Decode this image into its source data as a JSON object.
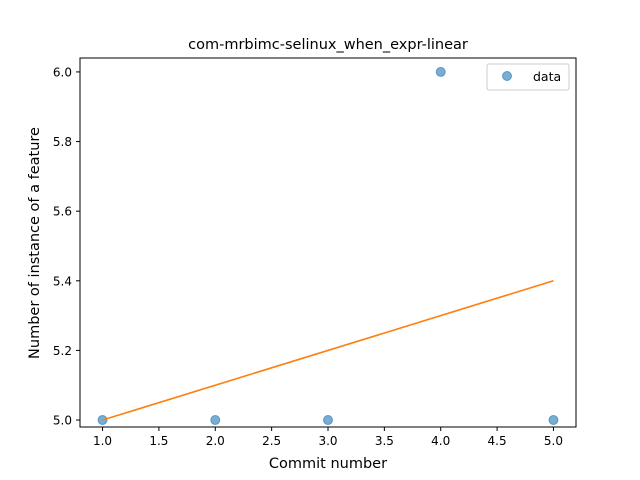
{
  "chart_data": {
    "type": "scatter",
    "title": "com-mrbimc-selinux_when_expr-linear",
    "xlabel": "Commit number",
    "ylabel": "Number of instance of a feature",
    "xlim": [
      0.8,
      5.2
    ],
    "ylim": [
      4.98,
      6.04
    ],
    "x_ticks": [
      1.0,
      1.5,
      2.0,
      2.5,
      3.0,
      3.5,
      4.0,
      4.5,
      5.0
    ],
    "x_tick_labels": [
      "1.0",
      "1.5",
      "2.0",
      "2.5",
      "3.0",
      "3.5",
      "4.0",
      "4.5",
      "5.0"
    ],
    "y_ticks": [
      5.0,
      5.2,
      5.4,
      5.6,
      5.8,
      6.0
    ],
    "y_tick_labels": [
      "5.0",
      "5.2",
      "5.4",
      "5.6",
      "5.8",
      "6.0"
    ],
    "grid": false,
    "legend_position": "top-right",
    "series": [
      {
        "name": "data",
        "kind": "scatter",
        "color": "#1f77b4",
        "x": [
          1,
          2,
          3,
          4,
          5
        ],
        "y": [
          5,
          5,
          5,
          6,
          5
        ]
      },
      {
        "kind": "line",
        "color": "#ff7f0e",
        "x": [
          1,
          5
        ],
        "y": [
          5.0,
          5.4
        ]
      }
    ]
  }
}
